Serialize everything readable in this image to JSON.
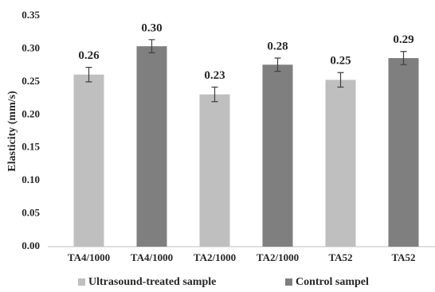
{
  "chart_data": {
    "type": "bar",
    "y_label": "Elasticity (mm/s)",
    "categories": [
      "TA4/1000",
      "TA4/1000",
      "TA2/1000",
      "TA2/1000",
      "TA52",
      "TA52"
    ],
    "series": [
      {
        "name": "Ultrasound-treated sample",
        "color": "#bfbfbf",
        "values": [
          0.261,
          null,
          0.231,
          null,
          0.253,
          null
        ],
        "errors": [
          0.011,
          null,
          0.011,
          null,
          0.011,
          null
        ],
        "value_labels": [
          "0.26",
          null,
          "0.23",
          null,
          "0.25",
          null
        ]
      },
      {
        "name": "Control sampel",
        "color": "#7f7f7f",
        "values": [
          null,
          0.304,
          null,
          0.276,
          null,
          0.286
        ],
        "errors": [
          null,
          0.01,
          null,
          0.01,
          null,
          0.01
        ],
        "value_labels": [
          null,
          "0.30",
          null,
          "0.28",
          null,
          "0.29"
        ]
      }
    ],
    "ylim": [
      0,
      0.35
    ],
    "yticks": [
      {
        "value": 0,
        "label": "0.00"
      },
      0.05,
      {
        "value": 0.1,
        "label": "0.10"
      },
      0.15,
      {
        "value": 0.2,
        "label": "0.20"
      },
      0.25,
      {
        "value": 0.3,
        "label": "0.30"
      },
      0.35
    ],
    "grid": false,
    "legend": "bottom"
  }
}
